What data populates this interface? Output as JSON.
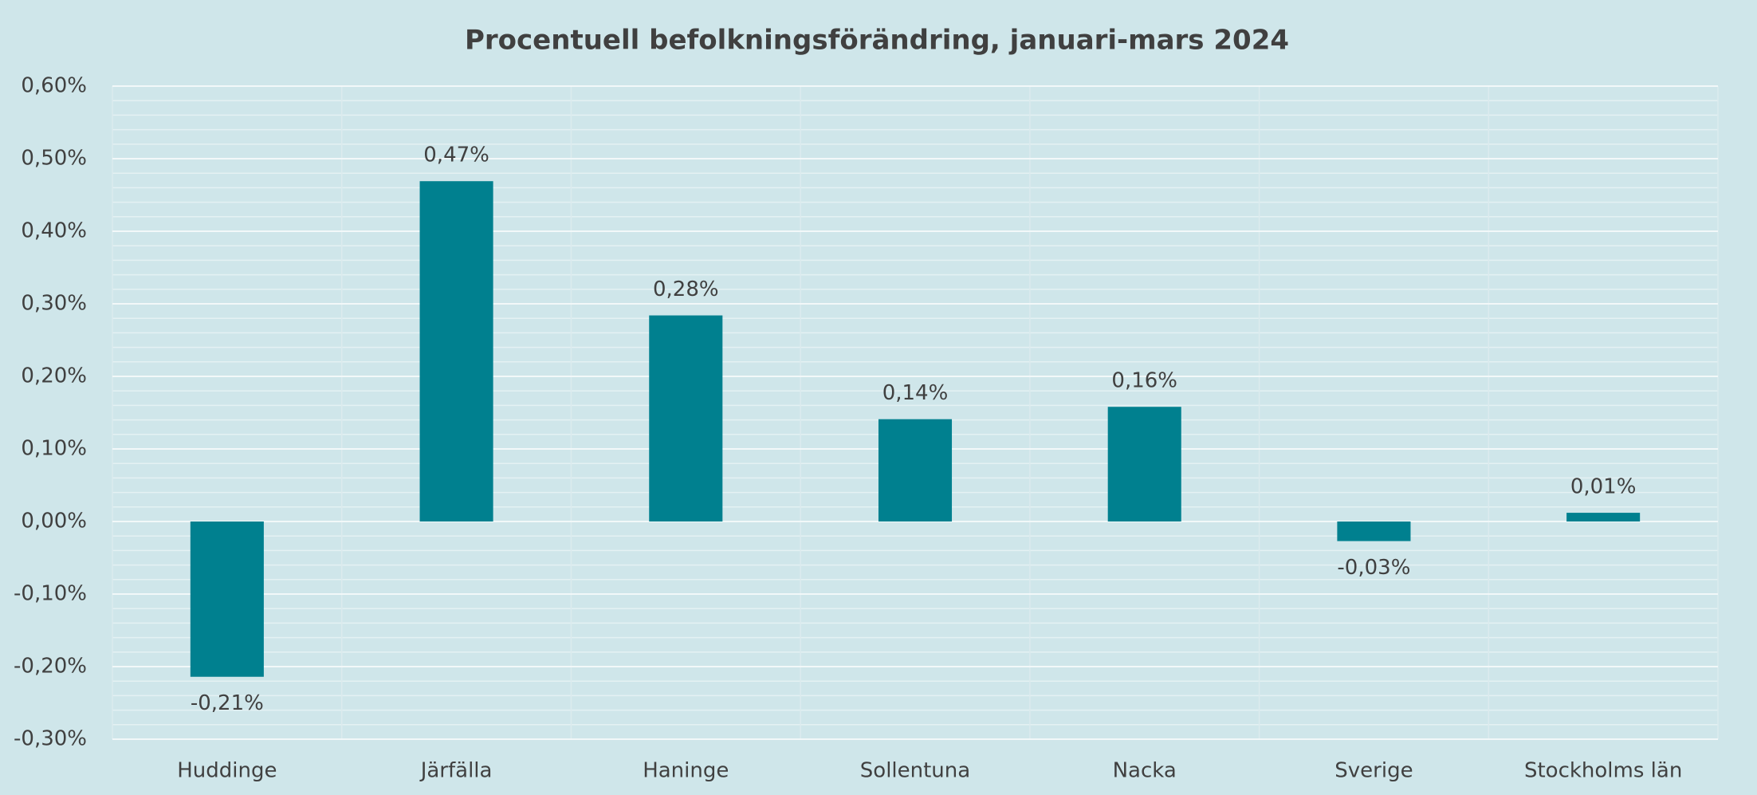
{
  "chart_data": {
    "type": "bar",
    "title": "Procentuell befolkningsförändring, januari-mars 2024",
    "categories": [
      "Huddinge",
      "Järfälla",
      "Haninge",
      "Sollentuna",
      "Nacka",
      "Sverige",
      "Stockholms län"
    ],
    "values": [
      -0.214,
      0.469,
      0.284,
      0.141,
      0.158,
      -0.027,
      0.012
    ],
    "value_labels": [
      "-0,21%",
      "0,47%",
      "0,28%",
      "0,14%",
      "0,16%",
      "-0,03%",
      "0,01%"
    ],
    "color": "#00808f",
    "ylim": [
      -0.3,
      0.6
    ],
    "yticks": [
      {
        "value": -0.3,
        "label": "-0,30%"
      },
      {
        "value": -0.2,
        "label": "-0,20%"
      },
      {
        "value": -0.1,
        "label": "-0,10%"
      },
      {
        "value": 0,
        "label": "0,00%"
      },
      {
        "value": 0.1,
        "label": "0,10%"
      },
      {
        "value": 0.2,
        "label": "0,20%"
      },
      {
        "value": 0.3,
        "label": "0,30%"
      },
      {
        "value": 0.4,
        "label": "0,40%"
      },
      {
        "value": 0.5,
        "label": "0,50%"
      },
      {
        "value": 0.6,
        "label": "0,60%"
      }
    ],
    "grid": true
  }
}
